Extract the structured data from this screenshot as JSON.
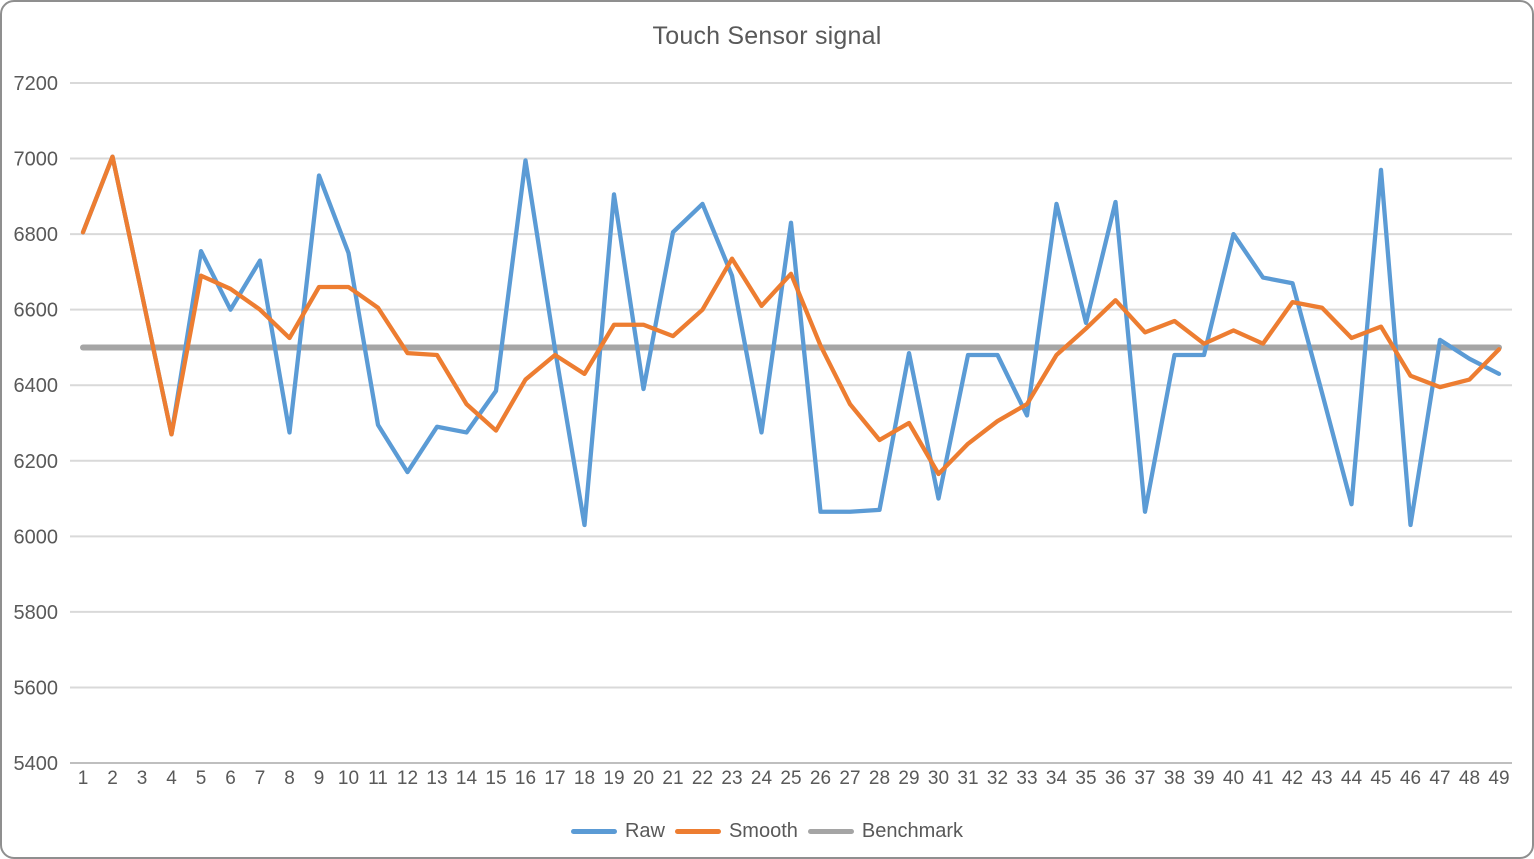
{
  "window": {
    "background": "#ffffff",
    "border_color": "#8f8f8f"
  },
  "chart_data": {
    "type": "line",
    "title": "Touch Sensor signal",
    "title_color": "#595959",
    "xlabel": "",
    "ylabel": "",
    "x": [
      1,
      2,
      3,
      4,
      5,
      6,
      7,
      8,
      9,
      10,
      11,
      12,
      13,
      14,
      15,
      16,
      17,
      18,
      19,
      20,
      21,
      22,
      23,
      24,
      25,
      26,
      27,
      28,
      29,
      30,
      31,
      32,
      33,
      34,
      35,
      36,
      37,
      38,
      39,
      40,
      41,
      42,
      43,
      44,
      45,
      46,
      47,
      48,
      49
    ],
    "series": [
      {
        "name": "Raw",
        "color": "#5B9BD5",
        "values": [
          6805,
          7005,
          6640,
          6270,
          6755,
          6600,
          6730,
          6275,
          6955,
          6750,
          6295,
          6170,
          6290,
          6275,
          6385,
          6995,
          6495,
          6030,
          6905,
          6390,
          6805,
          6880,
          6690,
          6275,
          6830,
          6065,
          6065,
          6070,
          6485,
          6100,
          6480,
          6480,
          6320,
          6880,
          6565,
          6885,
          6065,
          6480,
          6480,
          6800,
          6685,
          6670,
          6380,
          6085,
          6970,
          6030,
          6520,
          6470,
          6430
        ]
      },
      {
        "name": "Smooth",
        "color": "#ED7D31",
        "values": [
          6805,
          7005,
          6640,
          6270,
          6690,
          6655,
          6600,
          6525,
          6660,
          6660,
          6605,
          6485,
          6480,
          6350,
          6280,
          6415,
          6480,
          6430,
          6560,
          6560,
          6530,
          6600,
          6735,
          6610,
          6695,
          6505,
          6350,
          6255,
          6300,
          6165,
          6245,
          6305,
          6350,
          6480,
          6550,
          6625,
          6540,
          6570,
          6510,
          6545,
          6510,
          6620,
          6605,
          6525,
          6555,
          6425,
          6395,
          6415,
          6495
        ]
      },
      {
        "name": "Benchmark",
        "color": "#A5A5A5",
        "constant_value": 6500
      }
    ],
    "ylim": [
      5400,
      7200
    ],
    "yticks": [
      5400,
      5600,
      5800,
      6000,
      6200,
      6400,
      6600,
      6800,
      7000,
      7200
    ],
    "grid": true,
    "gridline_color": "#D9D9D9",
    "axis_line_color": "#BFBFBF",
    "tick_label_color": "#595959",
    "legend_position": "bottom",
    "legend_text_color": "#595959"
  }
}
